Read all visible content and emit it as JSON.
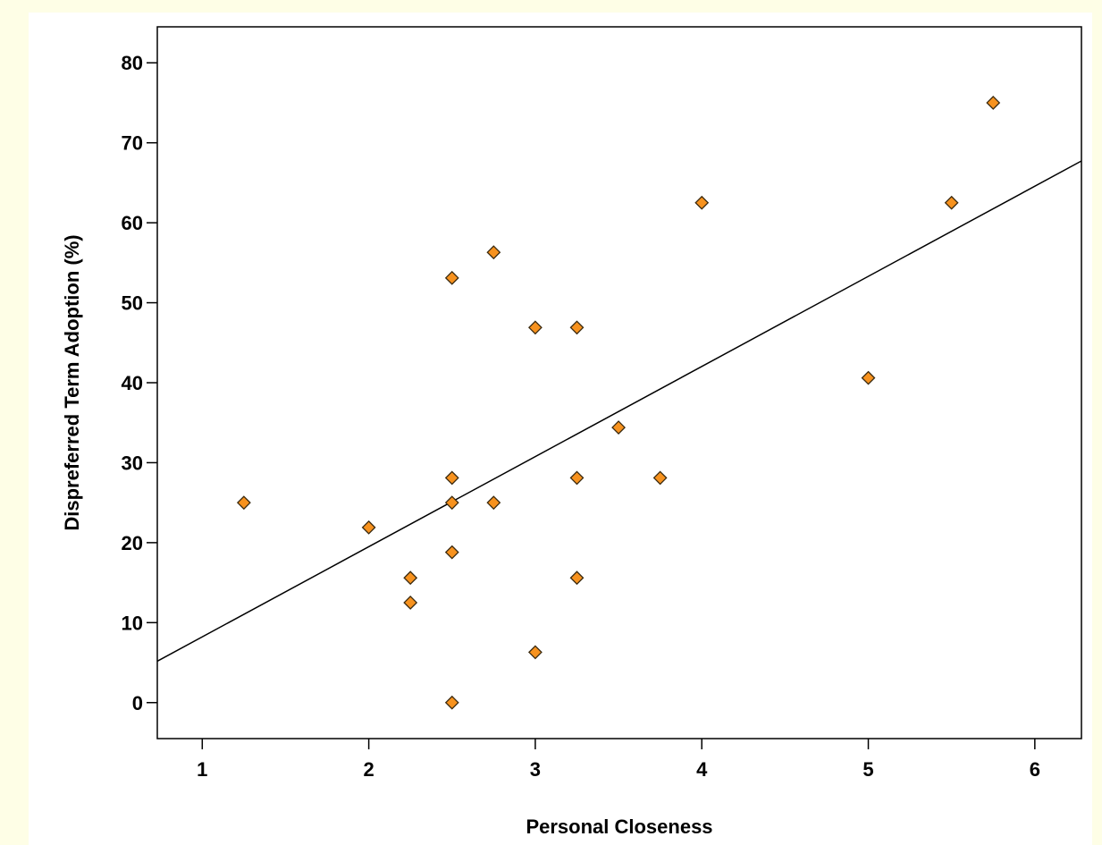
{
  "chart_data": {
    "type": "scatter",
    "title": "",
    "xlabel": "Personal Closeness",
    "ylabel": "Dispreferred Term Adoption (%)",
    "xlim": [
      0.73,
      6.28
    ],
    "ylim": [
      -4.5,
      84.5
    ],
    "x_ticks": [
      1,
      2,
      3,
      4,
      5,
      6
    ],
    "y_ticks": [
      0,
      10,
      20,
      30,
      40,
      50,
      60,
      70,
      80
    ],
    "grid": false,
    "legend": "none",
    "marker": "diamond",
    "marker_color": "#f7921e",
    "marker_edge_color": "#3a2a10",
    "points": [
      {
        "x": 1.25,
        "y": 25.0
      },
      {
        "x": 2.0,
        "y": 21.9
      },
      {
        "x": 2.25,
        "y": 15.6
      },
      {
        "x": 2.25,
        "y": 12.5
      },
      {
        "x": 2.5,
        "y": 53.1
      },
      {
        "x": 2.5,
        "y": 28.1
      },
      {
        "x": 2.5,
        "y": 25.0
      },
      {
        "x": 2.5,
        "y": 18.8
      },
      {
        "x": 2.5,
        "y": 0.0
      },
      {
        "x": 2.75,
        "y": 56.3
      },
      {
        "x": 2.75,
        "y": 25.0
      },
      {
        "x": 3.0,
        "y": 46.9
      },
      {
        "x": 3.0,
        "y": 6.3
      },
      {
        "x": 3.25,
        "y": 46.9
      },
      {
        "x": 3.25,
        "y": 28.1
      },
      {
        "x": 3.25,
        "y": 15.6
      },
      {
        "x": 3.5,
        "y": 34.4
      },
      {
        "x": 3.75,
        "y": 28.1
      },
      {
        "x": 4.0,
        "y": 62.5
      },
      {
        "x": 5.0,
        "y": 40.6
      },
      {
        "x": 5.5,
        "y": 62.5
      },
      {
        "x": 5.75,
        "y": 75.0
      }
    ],
    "fit_line": {
      "type": "linear",
      "slope": 11.27,
      "intercept": -3.05,
      "color": "#000000"
    }
  }
}
